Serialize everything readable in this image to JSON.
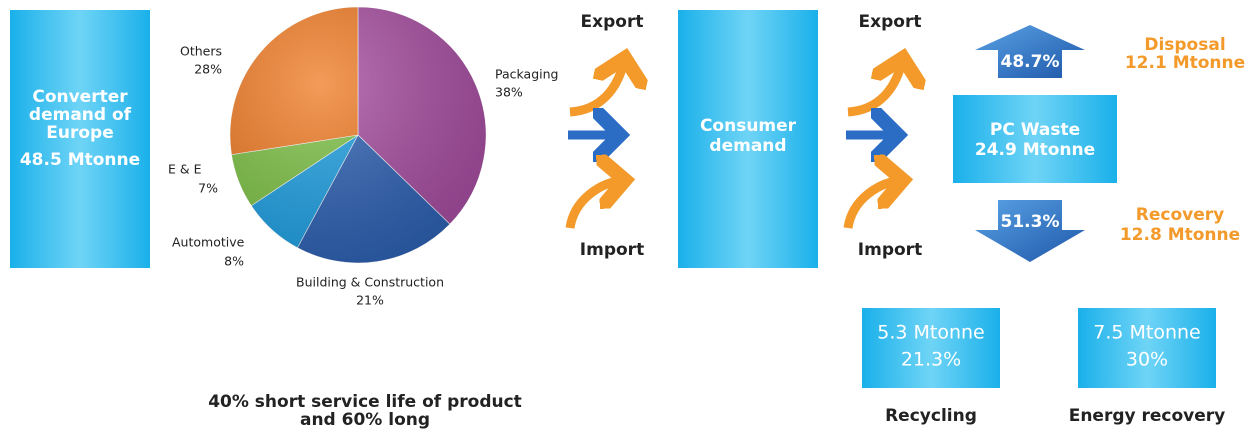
{
  "left_box": {
    "lines": [
      "Converter",
      "demand of",
      "Europe",
      "48.5 Mtonne"
    ]
  },
  "pie": {
    "slices": [
      {
        "name": "Packaging",
        "value": 38,
        "label": "38%",
        "color": "#a54b9f"
      },
      {
        "name": "Building & Construction",
        "value": 21,
        "label": "21%",
        "color": "#2b5fb2"
      },
      {
        "name": "Automotive",
        "value": 8,
        "label": "8%",
        "color": "#1c9fe2"
      },
      {
        "name": "E & E",
        "value": 7,
        "label": "7%",
        "color": "#7cc143"
      },
      {
        "name": "Others",
        "value": 28,
        "label": "28%",
        "color": "#f07a22"
      }
    ]
  },
  "note": [
    "40% short service life of product",
    "and 60% long"
  ],
  "flow1": {
    "export": "Export",
    "import": "Import"
  },
  "consumer_box": {
    "lines": [
      "Consumer",
      "demand"
    ]
  },
  "flow2": {
    "export": "Export",
    "import": "Import"
  },
  "disposal": {
    "arrow": "48.7%",
    "lines": [
      "Disposal",
      "12.1 Mtonne"
    ]
  },
  "waste_box": {
    "lines": [
      "PC Waste",
      "24.9 Mtonne"
    ]
  },
  "recovery": {
    "arrow": "51.3%",
    "lines": [
      "Recovery",
      "12.8 Mtonne"
    ]
  },
  "recycling": {
    "lines": [
      "5.3 Mtonne",
      "21.3%"
    ],
    "caption": "Recycling"
  },
  "energy": {
    "lines": [
      "7.5 Mtonne",
      "30%"
    ],
    "caption": "Energy recovery"
  }
}
